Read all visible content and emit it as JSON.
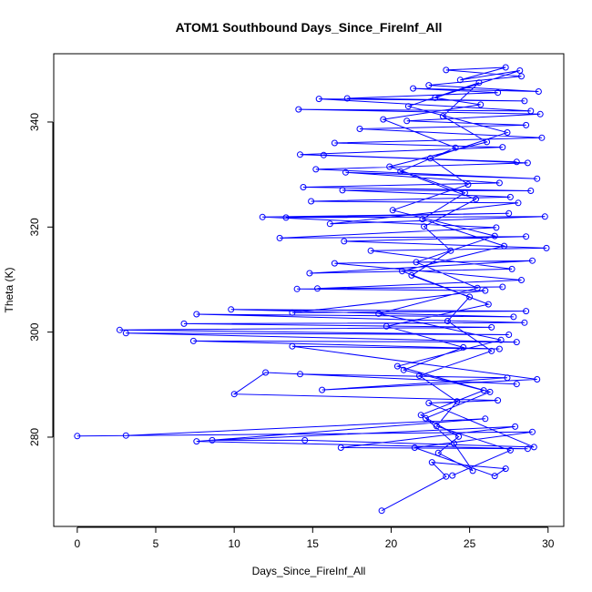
{
  "chart_data": {
    "type": "line",
    "title": "ATOM1 Southbound Days_Since_FireInf_All",
    "xlabel": "Days_Since_FireInf_All",
    "ylabel": "Theta (K)",
    "xlim": [
      -1.5,
      31.0
    ],
    "ylim": [
      263,
      353
    ],
    "x_ticks": [
      0,
      5,
      10,
      15,
      20,
      25,
      30
    ],
    "y_ticks": [
      280,
      300,
      320,
      340
    ],
    "grid": false,
    "legend": "none",
    "series": [
      {
        "color": "#0000ff",
        "marker": "open-circle",
        "points": [
          [
            19.4,
            266.0
          ],
          [
            23.5,
            272.5
          ],
          [
            22.6,
            275.2
          ],
          [
            27.3,
            274.0
          ],
          [
            26.6,
            272.6
          ],
          [
            21.5,
            278.0
          ],
          [
            29.0,
            281.0
          ],
          [
            0.0,
            280.2
          ],
          [
            3.1,
            280.3
          ],
          [
            26.0,
            283.5
          ],
          [
            7.6,
            279.2
          ],
          [
            28.7,
            277.8
          ],
          [
            16.8,
            278.0
          ],
          [
            27.9,
            282.0
          ],
          [
            8.6,
            279.4
          ],
          [
            14.5,
            279.4
          ],
          [
            29.1,
            278.1
          ],
          [
            22.4,
            286.5
          ],
          [
            26.8,
            287.0
          ],
          [
            10.0,
            288.2
          ],
          [
            12.0,
            292.3
          ],
          [
            28.0,
            290.1
          ],
          [
            14.2,
            292.0
          ],
          [
            27.4,
            291.3
          ],
          [
            15.6,
            289.0
          ],
          [
            29.3,
            291.0
          ],
          [
            13.7,
            297.3
          ],
          [
            26.9,
            296.8
          ],
          [
            7.4,
            298.3
          ],
          [
            28.0,
            298.1
          ],
          [
            3.1,
            299.8
          ],
          [
            27.5,
            299.5
          ],
          [
            2.7,
            300.4
          ],
          [
            26.4,
            300.9
          ],
          [
            6.8,
            301.6
          ],
          [
            28.5,
            301.8
          ],
          [
            7.6,
            303.4
          ],
          [
            27.8,
            302.9
          ],
          [
            9.8,
            304.3
          ],
          [
            28.6,
            304.0
          ],
          [
            13.7,
            303.7
          ],
          [
            26.0,
            307.9
          ],
          [
            14.0,
            308.2
          ],
          [
            27.1,
            308.6
          ],
          [
            15.3,
            308.3
          ],
          [
            28.3,
            309.9
          ],
          [
            16.4,
            313.1
          ],
          [
            29.0,
            313.6
          ],
          [
            14.8,
            311.2
          ],
          [
            27.7,
            312.0
          ],
          [
            18.7,
            315.5
          ],
          [
            29.9,
            316.0
          ],
          [
            17.0,
            317.3
          ],
          [
            28.6,
            318.2
          ],
          [
            12.9,
            317.9
          ],
          [
            26.7,
            319.9
          ],
          [
            11.8,
            321.9
          ],
          [
            27.5,
            322.6
          ],
          [
            13.3,
            321.8
          ],
          [
            29.8,
            322.0
          ],
          [
            16.1,
            320.6
          ],
          [
            28.1,
            324.6
          ],
          [
            14.9,
            324.9
          ],
          [
            27.6,
            325.7
          ],
          [
            16.9,
            327.0
          ],
          [
            28.9,
            326.9
          ],
          [
            14.4,
            327.6
          ],
          [
            26.9,
            328.4
          ],
          [
            17.1,
            330.4
          ],
          [
            29.3,
            329.2
          ],
          [
            15.2,
            331.0
          ],
          [
            28.7,
            332.2
          ],
          [
            15.7,
            333.7
          ],
          [
            28.0,
            332.4
          ],
          [
            14.2,
            333.8
          ],
          [
            27.1,
            335.2
          ],
          [
            16.4,
            336.0
          ],
          [
            29.6,
            337.0
          ],
          [
            18.0,
            338.7
          ],
          [
            28.6,
            339.4
          ],
          [
            21.0,
            340.2
          ],
          [
            29.5,
            341.5
          ],
          [
            14.1,
            342.4
          ],
          [
            28.9,
            342.1
          ],
          [
            15.4,
            344.4
          ],
          [
            28.5,
            344.0
          ],
          [
            17.2,
            344.5
          ],
          [
            26.8,
            345.6
          ],
          [
            21.4,
            346.4
          ],
          [
            29.4,
            345.8
          ],
          [
            22.4,
            347.0
          ],
          [
            28.3,
            348.7
          ],
          [
            23.5,
            349.9
          ],
          [
            27.3,
            350.4
          ],
          [
            24.4,
            348.0
          ],
          [
            28.2,
            349.8
          ],
          [
            22.8,
            344.6
          ],
          [
            25.7,
            343.3
          ],
          [
            19.5,
            340.5
          ],
          [
            24.1,
            335.1
          ],
          [
            20.6,
            330.6
          ],
          [
            25.4,
            325.3
          ],
          [
            22.1,
            320.1
          ],
          [
            23.8,
            315.5
          ],
          [
            21.3,
            310.8
          ],
          [
            26.2,
            305.3
          ],
          [
            19.7,
            301.1
          ],
          [
            24.6,
            297.1
          ],
          [
            20.8,
            292.8
          ],
          [
            25.9,
            288.9
          ],
          [
            21.9,
            284.2
          ],
          [
            24.3,
            280.1
          ],
          [
            23.0,
            277.0
          ],
          [
            25.2,
            273.6
          ],
          [
            24.0,
            278.8
          ],
          [
            22.2,
            283.6
          ],
          [
            26.3,
            288.6
          ],
          [
            20.4,
            293.5
          ],
          [
            27.0,
            298.5
          ],
          [
            19.2,
            303.5
          ],
          [
            25.5,
            308.4
          ],
          [
            21.6,
            313.3
          ],
          [
            26.6,
            318.3
          ],
          [
            20.1,
            323.2
          ],
          [
            24.9,
            328.1
          ],
          [
            22.5,
            333.1
          ],
          [
            27.4,
            338.0
          ],
          [
            21.1,
            343.0
          ],
          [
            25.6,
            347.5
          ],
          [
            23.3,
            341.1
          ],
          [
            26.1,
            336.2
          ],
          [
            19.9,
            331.5
          ],
          [
            24.7,
            326.5
          ],
          [
            22.0,
            321.5
          ],
          [
            27.2,
            316.4
          ],
          [
            20.7,
            311.6
          ],
          [
            25.0,
            306.7
          ],
          [
            23.6,
            302.1
          ],
          [
            26.4,
            296.4
          ],
          [
            21.8,
            291.7
          ],
          [
            24.2,
            286.8
          ],
          [
            22.9,
            282.1
          ],
          [
            27.6,
            277.5
          ],
          [
            23.9,
            272.7
          ]
        ]
      }
    ]
  }
}
